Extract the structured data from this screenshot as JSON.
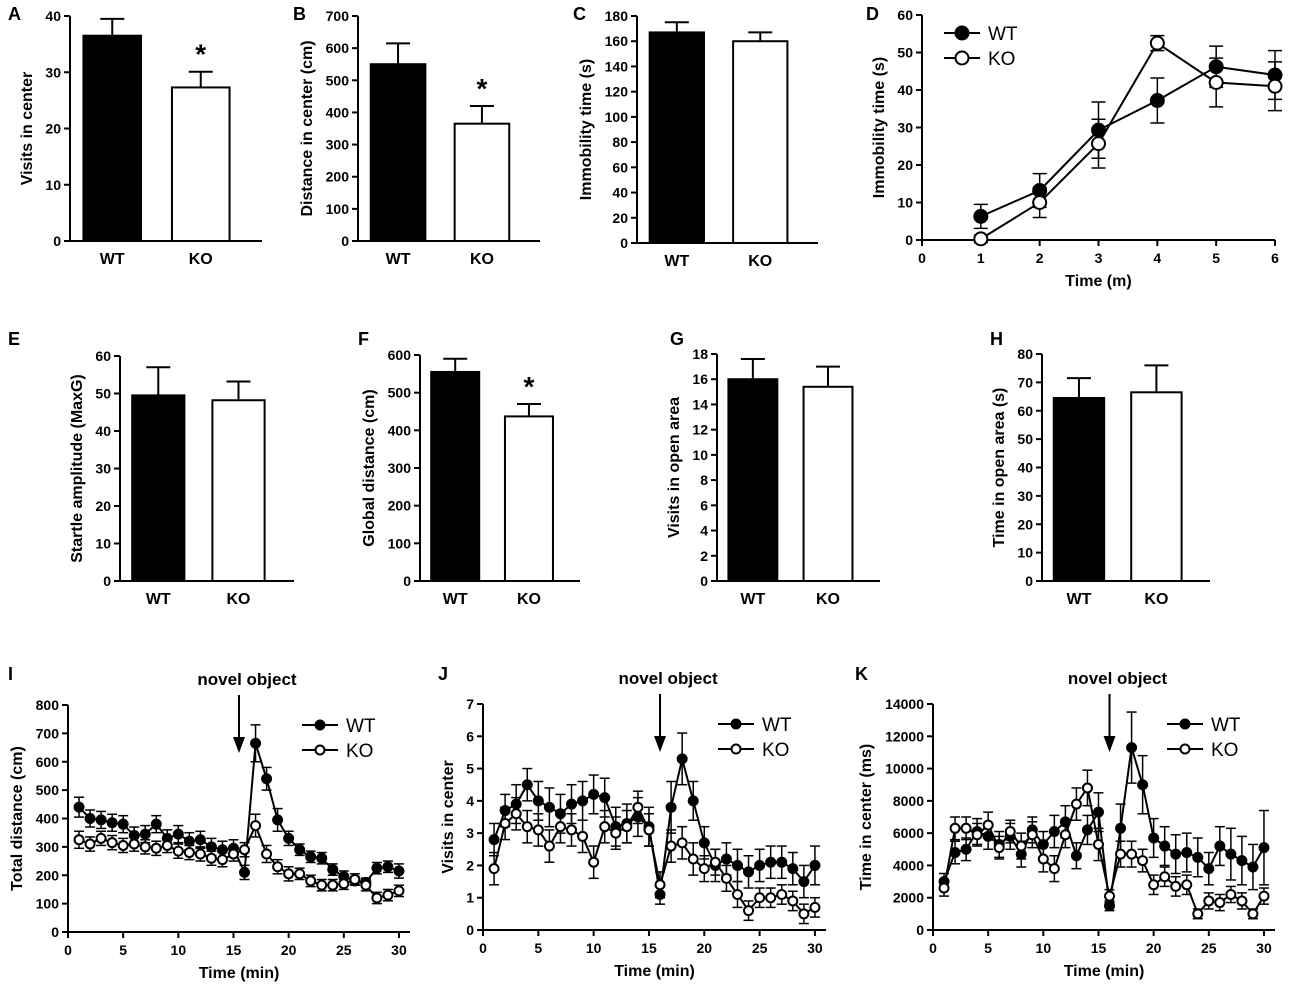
{
  "chart_data": [
    {
      "id": "A",
      "panel_label": "A",
      "type": "bar",
      "categories": [
        "WT",
        "KO"
      ],
      "values": [
        36.5,
        27.3
      ],
      "errors": [
        3,
        2.8
      ],
      "fills": [
        "#000000",
        "#ffffff"
      ],
      "ylabel": "Visits in center",
      "xlabel": "",
      "ylim": [
        0,
        40
      ],
      "yticks": [
        0,
        10,
        20,
        30,
        40
      ],
      "significance": [
        {
          "category": "KO",
          "label": "*"
        }
      ]
    },
    {
      "id": "B",
      "panel_label": "B",
      "type": "bar",
      "categories": [
        "WT",
        "KO"
      ],
      "values": [
        550,
        365
      ],
      "errors": [
        65,
        55
      ],
      "fills": [
        "#000000",
        "#ffffff"
      ],
      "ylabel": "Distance in center (cm)",
      "xlabel": "",
      "ylim": [
        0,
        700
      ],
      "yticks": [
        0,
        100,
        200,
        300,
        400,
        500,
        600,
        700
      ],
      "significance": [
        {
          "category": "KO",
          "label": "*"
        }
      ]
    },
    {
      "id": "C",
      "panel_label": "C",
      "type": "bar",
      "categories": [
        "WT",
        "KO"
      ],
      "values": [
        167,
        160
      ],
      "errors": [
        8,
        7
      ],
      "fills": [
        "#000000",
        "#ffffff"
      ],
      "ylabel": "Immobility time (s)",
      "xlabel": "",
      "ylim": [
        0,
        180
      ],
      "yticks": [
        0,
        20,
        40,
        60,
        80,
        100,
        120,
        140,
        160,
        180
      ],
      "significance": []
    },
    {
      "id": "D",
      "panel_label": "D",
      "type": "line",
      "x": [
        1,
        2,
        3,
        4,
        5,
        6
      ],
      "series": [
        {
          "name": "WT",
          "filled": true,
          "values": [
            6.3,
            13.2,
            29.3,
            37.2,
            46.2,
            44
          ],
          "errors": [
            3.2,
            4.5,
            7.5,
            6,
            5.5,
            6.5
          ]
        },
        {
          "name": "KO",
          "filled": false,
          "values": [
            0.3,
            10,
            25.7,
            52.5,
            42,
            41
          ],
          "errors": [
            1,
            4,
            6.5,
            2,
            6.5,
            6.5
          ]
        }
      ],
      "ylabel": "Immobility time (s)",
      "xlabel": "Time (m)",
      "xlim": [
        0,
        6
      ],
      "ylim": [
        0,
        60
      ],
      "xticks": [
        0,
        1,
        2,
        3,
        4,
        5,
        6
      ],
      "yticks": [
        0,
        10,
        20,
        30,
        40,
        50,
        60
      ],
      "legend": "top-left"
    },
    {
      "id": "E",
      "panel_label": "E",
      "type": "bar",
      "categories": [
        "WT",
        "KO"
      ],
      "values": [
        49.5,
        48.2
      ],
      "errors": [
        7.5,
        5
      ],
      "fills": [
        "#000000",
        "#ffffff"
      ],
      "ylabel": "Startle amplitude (MaxG)",
      "xlabel": "",
      "ylim": [
        0,
        60
      ],
      "yticks": [
        0,
        10,
        20,
        30,
        40,
        50,
        60
      ],
      "significance": []
    },
    {
      "id": "F",
      "panel_label": "F",
      "type": "bar",
      "categories": [
        "WT",
        "KO"
      ],
      "values": [
        555,
        437
      ],
      "errors": [
        35,
        33
      ],
      "fills": [
        "#000000",
        "#ffffff"
      ],
      "ylabel": "Global distance (cm)",
      "xlabel": "",
      "ylim": [
        0,
        600
      ],
      "yticks": [
        0,
        100,
        200,
        300,
        400,
        500,
        600
      ],
      "significance": [
        {
          "category": "KO",
          "label": "*"
        }
      ]
    },
    {
      "id": "G",
      "panel_label": "G",
      "type": "bar",
      "categories": [
        "WT",
        "KO"
      ],
      "values": [
        16,
        15.4
      ],
      "errors": [
        1.6,
        1.6
      ],
      "fills": [
        "#000000",
        "#ffffff"
      ],
      "ylabel": "Visits in open area",
      "xlabel": "",
      "ylim": [
        0,
        18
      ],
      "yticks": [
        0,
        2,
        4,
        6,
        8,
        10,
        12,
        14,
        16,
        18
      ],
      "significance": []
    },
    {
      "id": "H",
      "panel_label": "H",
      "type": "bar",
      "categories": [
        "WT",
        "KO"
      ],
      "values": [
        64.5,
        66.5
      ],
      "errors": [
        7,
        9.5
      ],
      "fills": [
        "#000000",
        "#ffffff"
      ],
      "ylabel": "Time in open area (s)",
      "xlabel": "",
      "ylim": [
        0,
        80
      ],
      "yticks": [
        0,
        10,
        20,
        30,
        40,
        50,
        60,
        70,
        80
      ],
      "significance": []
    },
    {
      "id": "I",
      "panel_label": "I",
      "type": "line",
      "annotation": "novel object",
      "annotation_x": 15.5,
      "x": [
        1,
        2,
        3,
        4,
        5,
        6,
        7,
        8,
        9,
        10,
        11,
        12,
        13,
        14,
        15,
        16,
        17,
        18,
        19,
        20,
        21,
        22,
        23,
        24,
        25,
        26,
        27,
        28,
        29,
        30
      ],
      "series": [
        {
          "name": "WT",
          "filled": true,
          "values": [
            440,
            400,
            395,
            385,
            380,
            340,
            345,
            380,
            330,
            345,
            320,
            325,
            300,
            290,
            295,
            210,
            665,
            540,
            395,
            330,
            290,
            265,
            260,
            220,
            195,
            180,
            175,
            225,
            230,
            215
          ],
          "errors": [
            35,
            30,
            30,
            30,
            30,
            30,
            30,
            30,
            30,
            30,
            30,
            30,
            30,
            30,
            30,
            25,
            65,
            40,
            40,
            25,
            20,
            20,
            20,
            20,
            20,
            15,
            15,
            20,
            20,
            25
          ]
        },
        {
          "name": "KO",
          "filled": false,
          "values": [
            325,
            310,
            330,
            315,
            305,
            310,
            300,
            295,
            305,
            285,
            280,
            275,
            260,
            255,
            275,
            290,
            375,
            275,
            230,
            205,
            205,
            180,
            165,
            165,
            170,
            185,
            165,
            120,
            130,
            145
          ],
          "errors": [
            30,
            25,
            25,
            25,
            25,
            25,
            25,
            25,
            25,
            25,
            25,
            25,
            25,
            25,
            25,
            25,
            40,
            30,
            25,
            25,
            20,
            20,
            20,
            20,
            20,
            20,
            20,
            20,
            20,
            20
          ]
        }
      ],
      "ylabel": "Total distance (cm)",
      "xlabel": "Time (min)",
      "xlim": [
        0,
        31
      ],
      "ylim": [
        0,
        800
      ],
      "xticks": [
        0,
        5,
        10,
        15,
        20,
        25,
        30
      ],
      "yticks": [
        0,
        100,
        200,
        300,
        400,
        500,
        600,
        700,
        800
      ],
      "legend": "top-right"
    },
    {
      "id": "J",
      "panel_label": "J",
      "type": "line",
      "annotation": "novel object",
      "annotation_x": 16,
      "x": [
        1,
        2,
        3,
        4,
        5,
        6,
        7,
        8,
        9,
        10,
        11,
        12,
        13,
        14,
        15,
        16,
        17,
        18,
        19,
        20,
        21,
        22,
        23,
        24,
        25,
        26,
        27,
        28,
        29,
        30
      ],
      "series": [
        {
          "name": "WT",
          "filled": true,
          "values": [
            2.8,
            3.7,
            3.9,
            4.5,
            4.0,
            3.8,
            3.6,
            3.9,
            4.0,
            4.2,
            4.1,
            3.2,
            3.3,
            3.5,
            3.2,
            1.1,
            3.8,
            5.3,
            4.0,
            2.7,
            2.0,
            2.2,
            2.0,
            1.8,
            2.0,
            2.1,
            2.1,
            1.9,
            1.5,
            2.0
          ],
          "errors": [
            0.5,
            0.5,
            0.6,
            0.5,
            0.6,
            0.6,
            0.6,
            0.6,
            0.6,
            0.6,
            0.6,
            0.6,
            0.6,
            0.6,
            0.6,
            0.3,
            0.8,
            0.8,
            0.6,
            0.5,
            0.5,
            0.5,
            0.5,
            0.5,
            0.5,
            0.5,
            0.5,
            0.5,
            0.5,
            0.6
          ]
        },
        {
          "name": "KO",
          "filled": false,
          "values": [
            1.9,
            3.3,
            3.6,
            3.2,
            3.1,
            2.6,
            3.2,
            3.1,
            2.9,
            2.1,
            3.2,
            3.0,
            3.2,
            3.8,
            3.1,
            1.4,
            2.6,
            2.7,
            2.2,
            1.9,
            2.1,
            1.6,
            1.1,
            0.6,
            1.0,
            1.0,
            1.1,
            0.9,
            0.5,
            0.7
          ],
          "errors": [
            0.5,
            0.5,
            0.5,
            0.5,
            0.5,
            0.5,
            0.5,
            0.5,
            0.5,
            0.5,
            0.5,
            0.5,
            0.5,
            0.5,
            0.5,
            0.4,
            0.5,
            0.5,
            0.5,
            0.4,
            0.4,
            0.4,
            0.4,
            0.3,
            0.3,
            0.3,
            0.3,
            0.3,
            0.3,
            0.3
          ]
        }
      ],
      "ylabel": "Visits in center",
      "xlabel": "Time (min)",
      "xlim": [
        0,
        31
      ],
      "ylim": [
        0,
        7
      ],
      "xticks": [
        0,
        5,
        10,
        15,
        20,
        25,
        30
      ],
      "yticks": [
        0,
        1,
        2,
        3,
        4,
        5,
        6,
        7
      ],
      "legend": "top-right"
    },
    {
      "id": "K",
      "panel_label": "K",
      "type": "line",
      "annotation": "novel object",
      "annotation_x": 16,
      "x": [
        1,
        2,
        3,
        4,
        5,
        6,
        7,
        8,
        9,
        10,
        11,
        12,
        13,
        14,
        15,
        16,
        17,
        18,
        19,
        20,
        21,
        22,
        23,
        24,
        25,
        26,
        27,
        28,
        29,
        30
      ],
      "series": [
        {
          "name": "WT",
          "filled": true,
          "values": [
            3000,
            4800,
            5000,
            6100,
            5800,
            5300,
            5800,
            4700,
            6200,
            5300,
            6100,
            6700,
            4600,
            6200,
            7300,
            1500,
            6300,
            11300,
            9000,
            5700,
            5200,
            4700,
            4800,
            4500,
            3800,
            5200,
            4700,
            4300,
            3900,
            5100
          ],
          "errors": [
            500,
            700,
            700,
            800,
            800,
            800,
            800,
            800,
            800,
            800,
            1000,
            1000,
            800,
            900,
            1200,
            300,
            1500,
            2200,
            1800,
            1200,
            1200,
            1200,
            1200,
            1200,
            1000,
            1200,
            1600,
            1500,
            1400,
            2300
          ]
        },
        {
          "name": "KO",
          "filled": false,
          "values": [
            2600,
            6300,
            6300,
            5900,
            6500,
            5100,
            6100,
            5200,
            5900,
            4400,
            3800,
            5900,
            7800,
            8800,
            5300,
            2100,
            4700,
            4700,
            4300,
            2800,
            3300,
            2700,
            2800,
            1000,
            1800,
            1700,
            2200,
            1800,
            1000,
            2100
          ],
          "errors": [
            500,
            700,
            700,
            700,
            800,
            700,
            700,
            800,
            800,
            800,
            800,
            800,
            1000,
            1100,
            1000,
            400,
            800,
            800,
            700,
            600,
            600,
            600,
            600,
            300,
            500,
            500,
            500,
            500,
            300,
            500
          ]
        }
      ],
      "ylabel": "Time in center (ms)",
      "xlabel": "Time (min)",
      "xlim": [
        0,
        31
      ],
      "ylim": [
        0,
        14000
      ],
      "xticks": [
        0,
        5,
        10,
        15,
        20,
        25,
        30
      ],
      "yticks": [
        0,
        2000,
        4000,
        6000,
        8000,
        10000,
        12000,
        14000
      ],
      "legend": "top-right"
    }
  ]
}
